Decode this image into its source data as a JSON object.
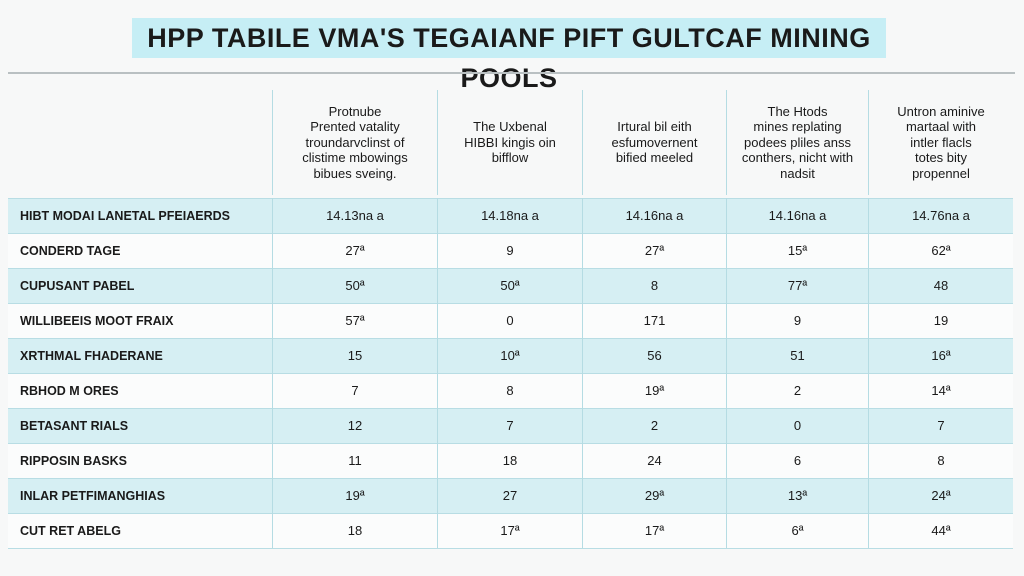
{
  "title": "HPP TABILE VMA'S TEGAIANF PIFT GULTCAF MINING POOLS",
  "table": {
    "header": [
      [
        "Protnube",
        "Prented vatality",
        "troundarvclinst of",
        "clistime mbowings",
        "bibues sveing."
      ],
      [
        "The Uxbenal",
        "HIBBI kingis oin",
        "bifflow"
      ],
      [
        "Irtural bil eith",
        "esfumovernent",
        "bified meeled"
      ],
      [
        "The Htods",
        "mines replating",
        "podees pliles anss",
        "conthers, nicht with",
        "nadsit"
      ],
      [
        "Untron aminive",
        "martaal with",
        "intler flacls",
        "totes bity",
        "propennel"
      ]
    ],
    "rows": [
      [
        "HIBT MODAI LANETAL PFEIAERDS",
        "14.13na a",
        "14.18na a",
        "14.16na a",
        "14.16na a",
        "14.76na a"
      ],
      [
        "CONDERD TAGE",
        "27ª",
        "9",
        "27ª",
        "15ª",
        "62ª"
      ],
      [
        "CUPUSANT PABEL",
        "50ª",
        "50ª",
        "8",
        "77ª",
        "48"
      ],
      [
        "WILLIBEEIS MOOT FRAIX",
        "57ª",
        "0",
        "171",
        "9",
        "19"
      ],
      [
        "XRTHMAL FHADERANE",
        "15",
        "10ª",
        "56",
        "51",
        "16ª"
      ],
      [
        "RBHOD M ORES",
        "7",
        "8",
        "19ª",
        "2",
        "14ª"
      ],
      [
        "BETASANT RIALS",
        "12",
        "7",
        "2",
        "0",
        "7"
      ],
      [
        "RIPPOSIN BASKS",
        "11",
        "18",
        "24",
        "6",
        "8"
      ],
      [
        "INLAR PETFIMANGHIAS",
        "19ª",
        "27",
        "29ª",
        "13ª",
        "24ª"
      ],
      [
        "CUT RET ABELG",
        "18",
        "17ª",
        "17ª",
        "6ª",
        "44ª"
      ]
    ]
  }
}
